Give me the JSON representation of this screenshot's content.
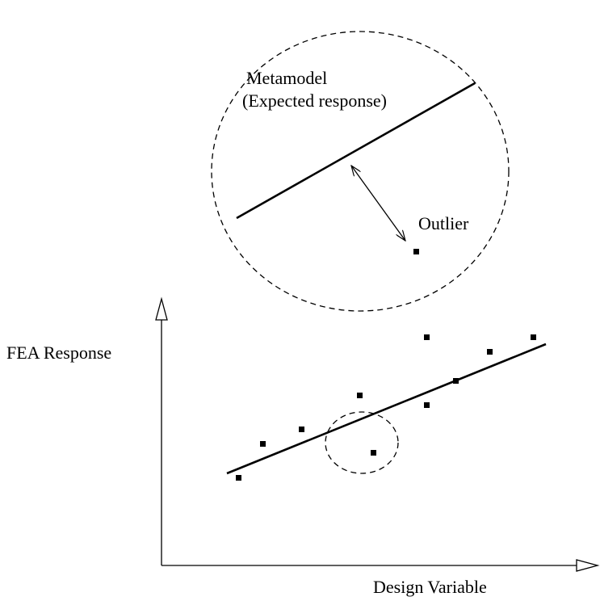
{
  "labels": {
    "metamodel": "Metamodel",
    "expected_response": "(Expected response)",
    "outlier": "Outlier"
  },
  "axes": {
    "y_label": "FEA Response",
    "x_label": "Design Variable"
  }
}
